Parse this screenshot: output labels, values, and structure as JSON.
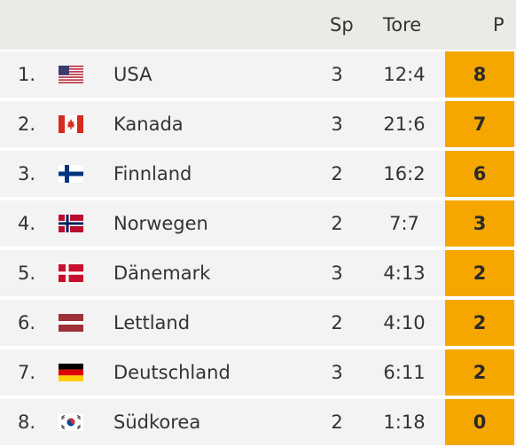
{
  "header": {
    "sp": "Sp",
    "tore": "Tore",
    "p": "P"
  },
  "rows": [
    {
      "rank": "1.",
      "flag_icon": "usa-flag-icon",
      "team": "USA",
      "sp": "3",
      "tore": "12:4",
      "p": "8"
    },
    {
      "rank": "2.",
      "flag_icon": "canada-flag-icon",
      "team": "Kanada",
      "sp": "3",
      "tore": "21:6",
      "p": "7"
    },
    {
      "rank": "3.",
      "flag_icon": "finland-flag-icon",
      "team": "Finnland",
      "sp": "2",
      "tore": "16:2",
      "p": "6"
    },
    {
      "rank": "4.",
      "flag_icon": "norway-flag-icon",
      "team": "Norwegen",
      "sp": "2",
      "tore": "7:7",
      "p": "3"
    },
    {
      "rank": "5.",
      "flag_icon": "denmark-flag-icon",
      "team": "Dänemark",
      "sp": "3",
      "tore": "4:13",
      "p": "2"
    },
    {
      "rank": "6.",
      "flag_icon": "latvia-flag-icon",
      "team": "Lettland",
      "sp": "2",
      "tore": "4:10",
      "p": "2"
    },
    {
      "rank": "7.",
      "flag_icon": "germany-flag-icon",
      "team": "Deutschland",
      "sp": "3",
      "tore": "6:11",
      "p": "2"
    },
    {
      "rank": "8.",
      "flag_icon": "south-korea-flag-icon",
      "team": "Südkorea",
      "sp": "2",
      "tore": "1:18",
      "p": "0"
    }
  ],
  "colors": {
    "header_bg": "#eceae7",
    "row_bg": "#f3f3f3",
    "points_bg": "#f5a700"
  }
}
